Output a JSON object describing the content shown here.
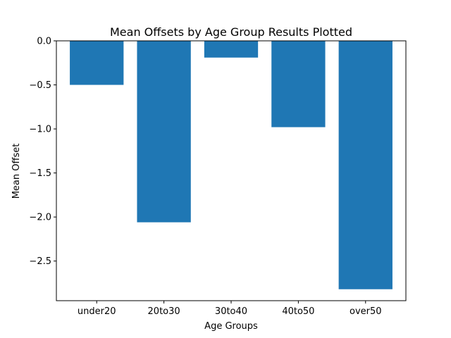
{
  "chart_data": {
    "type": "bar",
    "title": "Mean Offsets by Age Group Results Plotted",
    "xlabel": "Age Groups",
    "ylabel": "Mean Offset",
    "categories": [
      "under20",
      "20to30",
      "30to40",
      "40to50",
      "over50"
    ],
    "values": [
      -0.5,
      -2.06,
      -0.19,
      -0.98,
      -2.82
    ],
    "ylim": [
      -2.95,
      0.0
    ],
    "yticks": [
      0.0,
      -0.5,
      -1.0,
      -1.5,
      -2.0,
      -2.5
    ],
    "ytick_labels": [
      "0.0",
      "−0.5",
      "−1.0",
      "−1.5",
      "−2.0",
      "−2.5"
    ],
    "bar_color": "#1f77b4",
    "grid": false,
    "legend": "none"
  }
}
